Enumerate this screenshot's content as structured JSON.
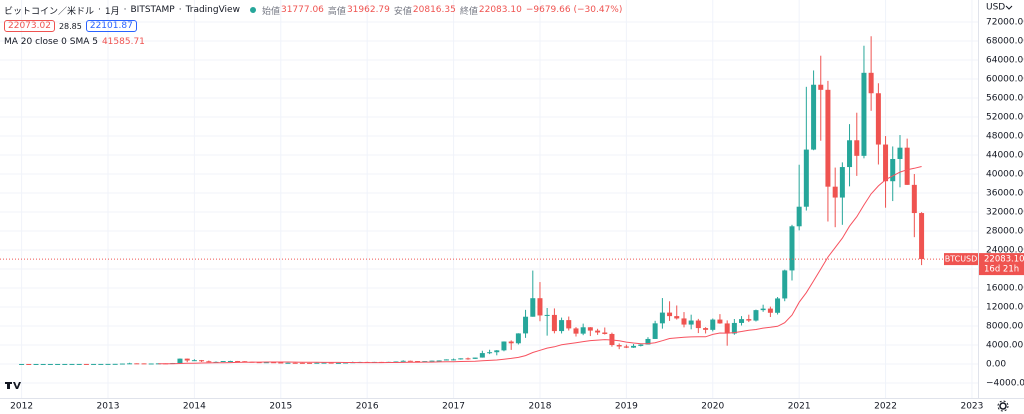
{
  "header": {
    "symbol": "ビットコイン／米ドル",
    "interval": "1月",
    "exchange": "BITSTAMP",
    "source": "TradingView",
    "open_label": "始値",
    "open": "31777.06",
    "high_label": "高値",
    "high": "31962.79",
    "low_label": "安値",
    "low": "20816.35",
    "close_label": "終値",
    "close": "22083.10",
    "change": "−9679.66 (−30.47%)",
    "bid": "22073.02",
    "spread": "28.85",
    "ask": "22101.87"
  },
  "chart_data": {
    "type": "candlestick",
    "currency": "USD",
    "up_color": "#26a69a",
    "down_color": "#ef5350",
    "x": [
      2012,
      2012.083,
      2012.167,
      2012.25,
      2012.333,
      2012.417,
      2012.5,
      2012.583,
      2012.667,
      2012.75,
      2012.833,
      2012.917,
      2013,
      2013.083,
      2013.167,
      2013.25,
      2013.333,
      2013.417,
      2013.5,
      2013.583,
      2013.667,
      2013.75,
      2013.833,
      2013.917,
      2014,
      2014.083,
      2014.167,
      2014.25,
      2014.333,
      2014.417,
      2014.5,
      2014.583,
      2014.667,
      2014.75,
      2014.833,
      2014.917,
      2015,
      2015.083,
      2015.167,
      2015.25,
      2015.333,
      2015.417,
      2015.5,
      2015.583,
      2015.667,
      2015.75,
      2015.833,
      2015.917,
      2016,
      2016.083,
      2016.167,
      2016.25,
      2016.333,
      2016.417,
      2016.5,
      2016.583,
      2016.667,
      2016.75,
      2016.833,
      2016.917,
      2017,
      2017.083,
      2017.167,
      2017.25,
      2017.333,
      2017.417,
      2017.5,
      2017.583,
      2017.667,
      2017.75,
      2017.833,
      2017.917,
      2018,
      2018.083,
      2018.167,
      2018.25,
      2018.333,
      2018.417,
      2018.5,
      2018.583,
      2018.667,
      2018.75,
      2018.833,
      2018.917,
      2019,
      2019.083,
      2019.167,
      2019.25,
      2019.333,
      2019.417,
      2019.5,
      2019.583,
      2019.667,
      2019.75,
      2019.833,
      2019.917,
      2020,
      2020.083,
      2020.167,
      2020.25,
      2020.333,
      2020.417,
      2020.5,
      2020.583,
      2020.667,
      2020.75,
      2020.833,
      2020.917,
      2021,
      2021.083,
      2021.167,
      2021.25,
      2021.333,
      2021.417,
      2021.5,
      2021.583,
      2021.667,
      2021.75,
      2021.833,
      2021.917,
      2022,
      2022.083,
      2022.167,
      2022.25,
      2022.333,
      2022.417
    ],
    "open": [
      5,
      5.5,
      4.9,
      4.9,
      5,
      5.2,
      6.7,
      9.3,
      10.2,
      12.4,
      11.2,
      12.6,
      13.5,
      20.4,
      33.4,
      93,
      139,
      129,
      97,
      106,
      135,
      128,
      205,
      1129,
      732,
      803,
      573,
      445,
      447,
      628,
      635,
      585,
      478,
      387,
      339,
      378,
      320,
      217,
      254,
      244,
      236,
      230,
      263,
      284,
      229,
      236,
      311,
      377,
      430,
      369,
      437,
      416,
      448,
      531,
      673,
      624,
      574,
      608,
      701,
      744,
      966,
      970,
      1190,
      1080,
      1350,
      2300,
      2480,
      2870,
      4730,
      4360,
      6440,
      9950,
      13850,
      10220,
      10330,
      6930,
      9240,
      7490,
      6390,
      7730,
      7030,
      6630,
      6320,
      3990,
      3690,
      3440,
      3810,
      4100,
      5270,
      8560,
      10820,
      10080,
      9590,
      8300,
      9150,
      7560,
      7190,
      9350,
      8540,
      6410,
      8640,
      9450,
      9140,
      11340,
      11660,
      10780,
      13800,
      19700,
      28990,
      33110,
      45140,
      58790,
      57720,
      37330,
      35040,
      41460,
      47100,
      43820,
      61300,
      57000,
      46200,
      38480,
      43160,
      45540,
      37710,
      31777.06
    ],
    "high": [
      7,
      6.5,
      5.5,
      5.3,
      5.2,
      6.7,
      9.5,
      15.4,
      12.5,
      13,
      12.6,
      13.7,
      20.5,
      33.5,
      95,
      259,
      140,
      129,
      110,
      135,
      142,
      218,
      1163,
      1153,
      1000,
      847,
      720,
      548,
      630,
      680,
      640,
      600,
      500,
      400,
      454,
      387,
      320,
      267,
      300,
      262,
      247,
      268,
      315,
      285,
      245,
      334,
      502,
      468,
      463,
      448,
      440,
      466,
      545,
      780,
      700,
      628,
      615,
      720,
      755,
      979,
      1150,
      1200,
      1350,
      1350,
      2790,
      3000,
      2930,
      4760,
      4980,
      6470,
      11400,
      19670,
      17250,
      11790,
      11700,
      9770,
      9990,
      7760,
      8500,
      7760,
      7410,
      7680,
      6600,
      4330,
      4080,
      4200,
      4170,
      5640,
      9090,
      13880,
      13200,
      12320,
      10930,
      10380,
      9500,
      7750,
      9580,
      10500,
      9180,
      9470,
      10080,
      10380,
      11450,
      12480,
      12080,
      14100,
      19860,
      29300,
      41950,
      58350,
      61800,
      64900,
      59600,
      41350,
      42450,
      50500,
      52900,
      67000,
      69000,
      59100,
      47990,
      45800,
      48200,
      47450,
      40000,
      31962.79
    ],
    "low": [
      4,
      4.3,
      4.6,
      4.7,
      4.8,
      5.1,
      6.5,
      7,
      10.1,
      9.8,
      10.4,
      12.3,
      12.9,
      19.1,
      33,
      50,
      79,
      88,
      65,
      100,
      113,
      106,
      204,
      382,
      726,
      421,
      437,
      340,
      420,
      550,
      567,
      440,
      350,
      275,
      320,
      308,
      152,
      212,
      236,
      214,
      227,
      216,
      253,
      198,
      225,
      235,
      305,
      350,
      350,
      366,
      400,
      412,
      436,
      527,
      580,
      470,
      567,
      605,
      690,
      738,
      750,
      917,
      890,
      1060,
      1340,
      2080,
      1830,
      2680,
      2970,
      4110,
      5500,
      9950,
      9000,
      5970,
      6450,
      6430,
      7050,
      5790,
      6070,
      5880,
      6130,
      6200,
      3650,
      3120,
      3350,
      3390,
      3700,
      4090,
      5270,
      7440,
      9070,
      9350,
      7710,
      7300,
      6510,
      6430,
      6860,
      8470,
      3850,
      6150,
      8100,
      8830,
      8950,
      10990,
      9890,
      10420,
      13220,
      17580,
      28130,
      32300,
      45000,
      47000,
      30000,
      28800,
      29300,
      37400,
      39600,
      43300,
      53300,
      42000,
      32900,
      34300,
      37200,
      37700,
      26700,
      20816.35
    ],
    "close": [
      5.5,
      4.9,
      4.9,
      5,
      5.2,
      6.7,
      9.3,
      10.2,
      12.4,
      11.2,
      12.6,
      13.5,
      20.4,
      33.4,
      93,
      139,
      129,
      97,
      106,
      135,
      128,
      205,
      1129,
      732,
      803,
      573,
      445,
      447,
      628,
      635,
      585,
      478,
      387,
      339,
      378,
      320,
      217,
      254,
      244,
      236,
      230,
      263,
      284,
      229,
      236,
      311,
      377,
      430,
      369,
      437,
      416,
      448,
      531,
      673,
      624,
      574,
      608,
      701,
      744,
      966,
      970,
      1190,
      1080,
      1350,
      2300,
      2480,
      2870,
      4730,
      4360,
      6440,
      9950,
      13850,
      10220,
      10330,
      6930,
      9240,
      7490,
      6390,
      7730,
      7030,
      6630,
      6320,
      3990,
      3690,
      3440,
      3810,
      4100,
      5270,
      8560,
      10820,
      10080,
      9590,
      8300,
      9150,
      7560,
      7190,
      9350,
      8540,
      6410,
      8640,
      9450,
      9140,
      11340,
      11660,
      10780,
      13800,
      19700,
      28990,
      33110,
      45140,
      58790,
      57720,
      37330,
      35040,
      41460,
      47100,
      43820,
      61300,
      57000,
      46200,
      38480,
      43160,
      45540,
      37710,
      31777.06,
      22083.1
    ],
    "ma": {
      "name": "MA 20 close 0 SMA 5",
      "value_label": "41585.71",
      "color": "#f7525f",
      "values": [
        null,
        null,
        null,
        null,
        null,
        null,
        null,
        null,
        null,
        null,
        null,
        null,
        null,
        null,
        null,
        null,
        null,
        null,
        null,
        40,
        45,
        55,
        100,
        140,
        175,
        200,
        225,
        245,
        275,
        300,
        330,
        355,
        375,
        390,
        410,
        425,
        420,
        410,
        400,
        380,
        360,
        350,
        345,
        340,
        330,
        315,
        305,
        300,
        295,
        300,
        300,
        305,
        320,
        345,
        360,
        370,
        390,
        405,
        430,
        460,
        490,
        520,
        550,
        590,
        670,
        750,
        840,
        1010,
        1170,
        1390,
        1770,
        2410,
        2880,
        3340,
        3620,
        4030,
        4280,
        4480,
        4720,
        4930,
        5030,
        5130,
        5060,
        4880,
        4610,
        4420,
        4280,
        4290,
        4480,
        4910,
        5360,
        5500,
        5630,
        5700,
        5720,
        5730,
        6240,
        6520,
        6500,
        6600,
        6850,
        7120,
        7260,
        7550,
        7720,
        7930,
        8700,
        10300,
        13000,
        15000,
        17500,
        20000,
        22500,
        24500,
        26500,
        29000,
        31000,
        33500,
        35800,
        37500,
        38800,
        39600,
        40400,
        40900,
        41200,
        41585.71
      ]
    },
    "last_price_tag": "BTCUSD",
    "last_price_label": "22083.10",
    "countdown": "16d 21h",
    "xlim": [
      2011.75,
      2023.07
    ],
    "xticks": [
      2012,
      2013,
      2014,
      2015,
      2016,
      2017,
      2018,
      2019,
      2020,
      2021,
      2022,
      2023
    ],
    "ylim": [
      -7160,
      76630
    ],
    "yticks": [
      {
        "value": -4000,
        "label": "−4000.00"
      },
      {
        "value": 0,
        "label": "0.00"
      },
      {
        "value": 4000,
        "label": "4000.00"
      },
      {
        "value": 8000,
        "label": "8000.00"
      },
      {
        "value": 12000,
        "label": "12000.00"
      },
      {
        "value": 16000,
        "label": "16000.00"
      },
      {
        "value": 20000,
        "label": "20000.00"
      },
      {
        "value": 24000,
        "label": "24000.00"
      },
      {
        "value": 28000,
        "label": "28000.00"
      },
      {
        "value": 32000,
        "label": "32000.00"
      },
      {
        "value": 36000,
        "label": "36000.00"
      },
      {
        "value": 40000,
        "label": "40000.00"
      },
      {
        "value": 44000,
        "label": "44000.00"
      },
      {
        "value": 48000,
        "label": "48000.00"
      },
      {
        "value": 52000,
        "label": "52000.00"
      },
      {
        "value": 56000,
        "label": "56000.00"
      },
      {
        "value": 60000,
        "label": "60000.00"
      },
      {
        "value": 64000,
        "label": "64000.00"
      },
      {
        "value": 68000,
        "label": "68000.00"
      },
      {
        "value": 72000,
        "label": "72000.00"
      }
    ],
    "grid": true
  }
}
